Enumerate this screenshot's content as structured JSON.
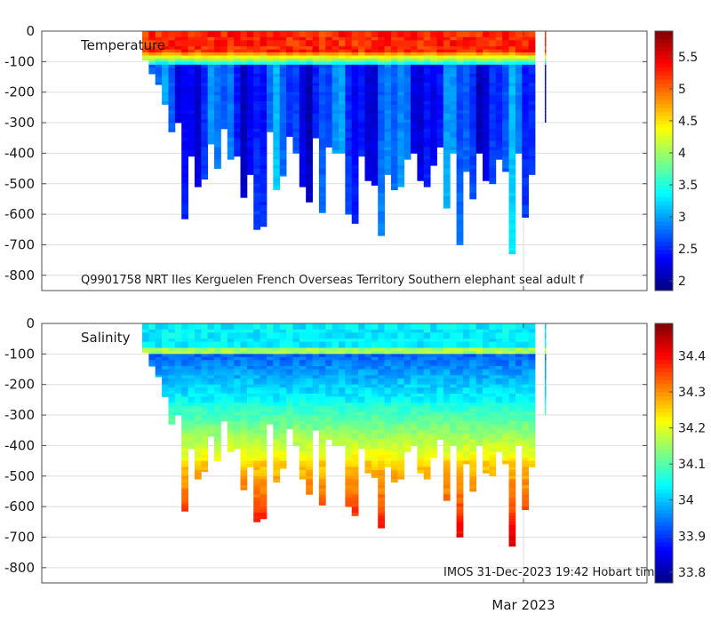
{
  "chart_data": [
    {
      "type": "heatmap",
      "variable": "Temperature",
      "title": "Temperature",
      "ylim": [
        -850,
        0
      ],
      "yticks": [
        0,
        -100,
        -200,
        -300,
        -400,
        -500,
        -600,
        -700,
        -800
      ],
      "ytick_labels": [
        "0",
        "-100",
        "-200",
        "-300",
        "-400",
        "-500",
        "-600",
        "-700",
        "-800"
      ],
      "colorbar": {
        "range": [
          1.85,
          5.9
        ],
        "ticks": [
          5.5,
          5,
          4.5,
          4,
          3.5,
          3,
          2.5,
          2
        ],
        "tick_labels": [
          "5.5",
          "5",
          "4.5",
          "4",
          "3.5",
          "3",
          "2.5",
          "2"
        ]
      },
      "caption": "Q9901758 NRT Iles Kerguelen French Overseas Territory Southern elephant seal adult f",
      "mixed_layer": {
        "surface_value": 5.2,
        "thermocline_top_depth": 70,
        "thermocline_bottom_depth": 120,
        "deep_value": 2.4
      }
    },
    {
      "type": "heatmap",
      "variable": "Salinity",
      "title": "Salinity",
      "ylim": [
        -850,
        0
      ],
      "yticks": [
        0,
        -100,
        -200,
        -300,
        -400,
        -500,
        -600,
        -700,
        -800
      ],
      "ytick_labels": [
        "0",
        "-100",
        "-200",
        "-300",
        "-400",
        "-500",
        "-600",
        "-700",
        "-800"
      ],
      "colorbar": {
        "range": [
          33.77,
          34.49
        ],
        "ticks": [
          34.4,
          34.3,
          34.2,
          34.1,
          34,
          33.9,
          33.8
        ],
        "tick_labels": [
          "34.4",
          "34.3",
          "34.2",
          "34.1",
          "34",
          "33.9",
          "33.8"
        ]
      },
      "caption": "IMOS 31-Dec-2023 19:42 Hobart tim",
      "x_axis": {
        "ticks": [
          "Mar 2023"
        ]
      }
    }
  ],
  "profiles": {
    "start_index": 0,
    "count": 60,
    "max_depths": [
      95,
      140,
      175,
      240,
      330,
      300,
      615,
      410,
      510,
      485,
      370,
      450,
      320,
      420,
      410,
      545,
      470,
      650,
      640,
      330,
      520,
      475,
      345,
      400,
      510,
      560,
      350,
      595,
      380,
      400,
      400,
      600,
      630,
      410,
      490,
      505,
      670,
      470,
      520,
      510,
      420,
      400,
      490,
      510,
      440,
      380,
      580,
      400,
      700,
      460,
      550,
      400,
      490,
      500,
      420,
      460,
      730,
      400,
      610,
      470
    ]
  }
}
